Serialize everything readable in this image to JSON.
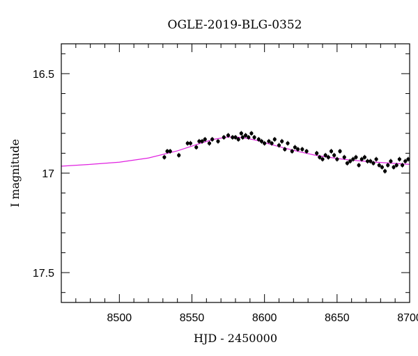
{
  "chart_data": {
    "type": "scatter",
    "title": "OGLE-2019-BLG-0352",
    "xlabel": "HJD - 2450000",
    "ylabel": "I magnitude",
    "xlim": [
      8460,
      8700
    ],
    "ylim": [
      16.35,
      17.65
    ],
    "y_inverted": true,
    "grid": false,
    "x_ticks": [
      8500,
      8550,
      8600,
      8650,
      8700
    ],
    "x_tick_labels": [
      "8500",
      "8550",
      "8600",
      "8650",
      "8700"
    ],
    "y_ticks": [
      16.5,
      17,
      17.5
    ],
    "y_tick_labels": [
      "16.5",
      "17",
      "17.5"
    ],
    "colors": {
      "data": "#000000",
      "model": "#e020e0"
    },
    "series": [
      {
        "kind": "points",
        "error": 0.012,
        "x": [
          8531,
          8533,
          8535,
          8541,
          8547,
          8549,
          8553,
          8555,
          8557,
          8559,
          8562,
          8564,
          8568,
          8572,
          8575,
          8578,
          8580,
          8582,
          8584,
          8585,
          8587,
          8589,
          8591,
          8593,
          8596,
          8598,
          8600,
          8603,
          8605,
          8607,
          8610,
          8612,
          8614,
          8616,
          8619,
          8621,
          8623,
          8626,
          8629,
          8636,
          8638,
          8640,
          8642,
          8644,
          8646,
          8648,
          8650,
          8652,
          8655,
          8657,
          8659,
          8661,
          8663,
          8665,
          8667,
          8669,
          8671,
          8673,
          8675,
          8677,
          8679,
          8681,
          8683,
          8685,
          8687,
          8689,
          8691,
          8693,
          8695,
          8697,
          8699
        ],
        "y": [
          16.92,
          16.89,
          16.89,
          16.91,
          16.85,
          16.85,
          16.87,
          16.84,
          16.84,
          16.83,
          16.85,
          16.83,
          16.84,
          16.82,
          16.81,
          16.82,
          16.82,
          16.83,
          16.8,
          16.82,
          16.81,
          16.82,
          16.8,
          16.82,
          16.83,
          16.84,
          16.85,
          16.84,
          16.85,
          16.83,
          16.86,
          16.84,
          16.88,
          16.85,
          16.89,
          16.87,
          16.88,
          16.88,
          16.89,
          16.9,
          16.92,
          16.93,
          16.91,
          16.92,
          16.89,
          16.91,
          16.93,
          16.89,
          16.92,
          16.95,
          16.94,
          16.93,
          16.92,
          16.96,
          16.93,
          16.92,
          16.94,
          16.94,
          16.95,
          16.93,
          16.96,
          16.97,
          16.99,
          16.96,
          16.94,
          16.97,
          16.96,
          16.93,
          16.96,
          16.94,
          16.93
        ]
      },
      {
        "kind": "model",
        "x": [
          8460,
          8480,
          8500,
          8520,
          8540,
          8555,
          8565,
          8575,
          8585,
          8595,
          8605,
          8615,
          8625,
          8635,
          8645,
          8655,
          8665,
          8675,
          8685,
          8700
        ],
        "y": [
          16.965,
          16.956,
          16.945,
          16.924,
          16.888,
          16.852,
          16.83,
          16.818,
          16.821,
          16.836,
          16.857,
          16.876,
          16.894,
          16.91,
          16.921,
          16.931,
          16.938,
          16.944,
          16.949,
          16.956
        ]
      }
    ]
  }
}
